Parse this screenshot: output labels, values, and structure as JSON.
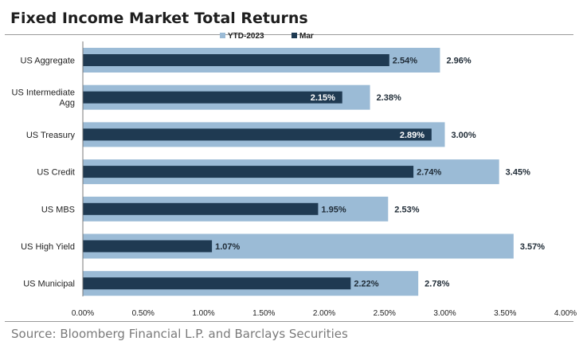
{
  "title": "Fixed Income Market Total Returns",
  "source": "Source: Bloomberg Financial L.P. and Barclays Securities",
  "chart_data": {
    "type": "bar",
    "orientation": "horizontal",
    "categories": [
      [
        "US Aggregate"
      ],
      [
        "US Intermediate",
        "Agg"
      ],
      [
        "US Treasury"
      ],
      [
        "US Credit"
      ],
      [
        "US MBS"
      ],
      [
        "US High Yield"
      ],
      [
        "US Municipal"
      ]
    ],
    "series": [
      {
        "name": "YTD-2023",
        "color": "#9bbbd6",
        "values": [
          2.96,
          2.38,
          3.0,
          3.45,
          2.53,
          3.57,
          2.78
        ],
        "labels": [
          "2.96%",
          "2.38%",
          "3.00%",
          "3.45%",
          "2.53%",
          "3.57%",
          "2.78%"
        ]
      },
      {
        "name": "Mar",
        "color": "#1f3a52",
        "values": [
          2.54,
          2.15,
          2.89,
          2.74,
          1.95,
          1.07,
          2.22
        ],
        "labels": [
          "2.54%",
          "2.15%",
          "2.89%",
          "2.74%",
          "1.95%",
          "1.07%",
          "2.22%"
        ]
      }
    ],
    "xlim": [
      0,
      4.0
    ],
    "ticks": [
      "0.00%",
      "0.50%",
      "1.00%",
      "1.50%",
      "2.00%",
      "2.50%",
      "3.00%",
      "3.50%",
      "4.00%"
    ],
    "legend": "top-center",
    "grid": false
  }
}
